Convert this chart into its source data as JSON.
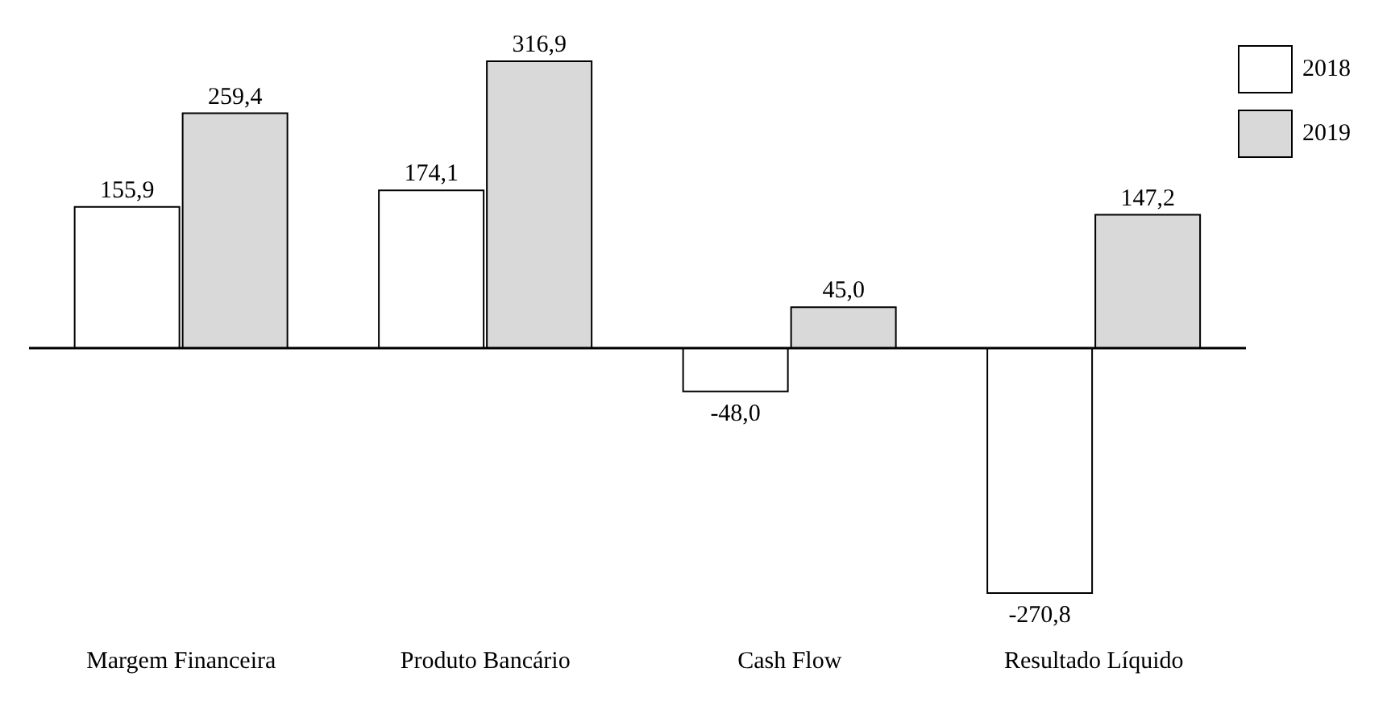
{
  "chart_data": {
    "type": "bar",
    "categories": [
      "Margem Financeira",
      "Produto Bancário",
      "Cash Flow",
      "Resultado Líquido"
    ],
    "series": [
      {
        "name": "2018",
        "color": "#ffffff",
        "values": [
          155.9,
          174.1,
          -48.0,
          -270.8
        ],
        "value_labels": [
          "155,9",
          "174,1",
          "-48,0",
          "-270,8"
        ]
      },
      {
        "name": "2019",
        "color": "#d9d9d9",
        "values": [
          259.4,
          316.9,
          45.0,
          147.2
        ],
        "value_labels": [
          "259,4",
          "316,9",
          "45,0",
          "147,2"
        ]
      }
    ],
    "legend": "top right"
  }
}
